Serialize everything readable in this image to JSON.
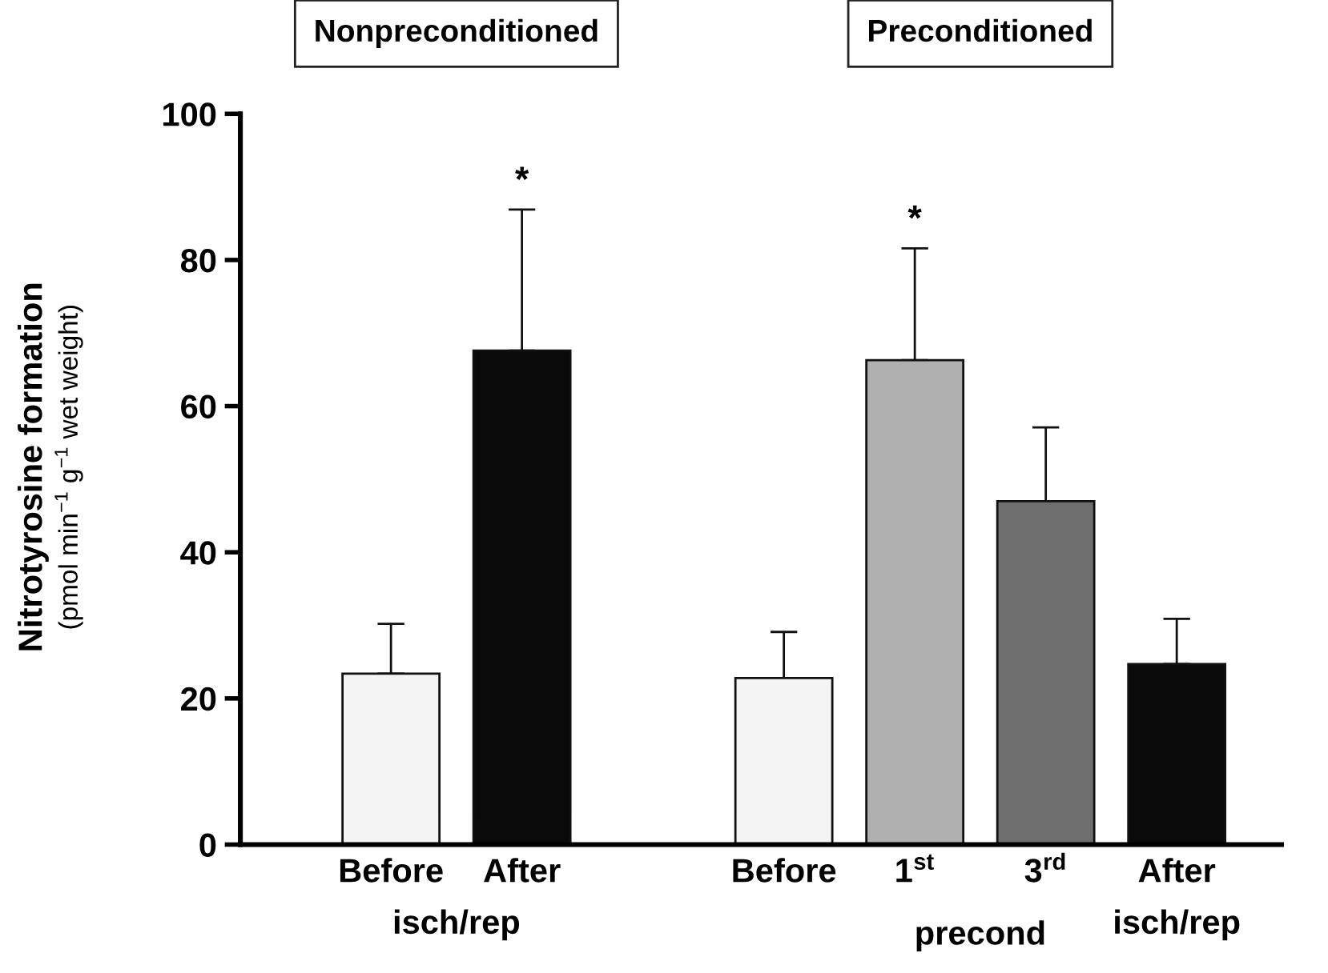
{
  "chart_data": {
    "type": "bar",
    "ylabel": "Nitrotyrosine formation\n(pmol min$^{−1}$ g$^{−1}$ wet weight)",
    "categories": [
      "Before",
      "After",
      null,
      "Before",
      "1$^{st}$",
      "3$^{rd}$",
      "After"
    ],
    "values": [
      23.4,
      67.6,
      null,
      22.8,
      66.3,
      47.0,
      24.7
    ],
    "errors": [
      [
        23.4,
        30.2
      ],
      [
        67.6,
        86.9
      ],
      null,
      [
        22.8,
        29.1
      ],
      [
        66.3,
        81.6
      ],
      [
        47.0,
        57.1
      ],
      [
        24.7,
        30.9
      ]
    ],
    "colors": [
      "#f4f4f4",
      "#0a0a0a",
      "#ffffff",
      "#f4f4f4",
      "#b0b0b0",
      "#6e6e6e",
      "#0a0a0a"
    ],
    "annotations": [
      "Nonpreconditioned",
      "Preconditioned",
      "isch/rep",
      "precond",
      "isch/rep",
      "*",
      "*"
    ],
    "ylim": [
      0,
      100
    ],
    "yticks": [
      0,
      20,
      40,
      60,
      80,
      100
    ],
    "grid": false,
    "legend": false
  }
}
